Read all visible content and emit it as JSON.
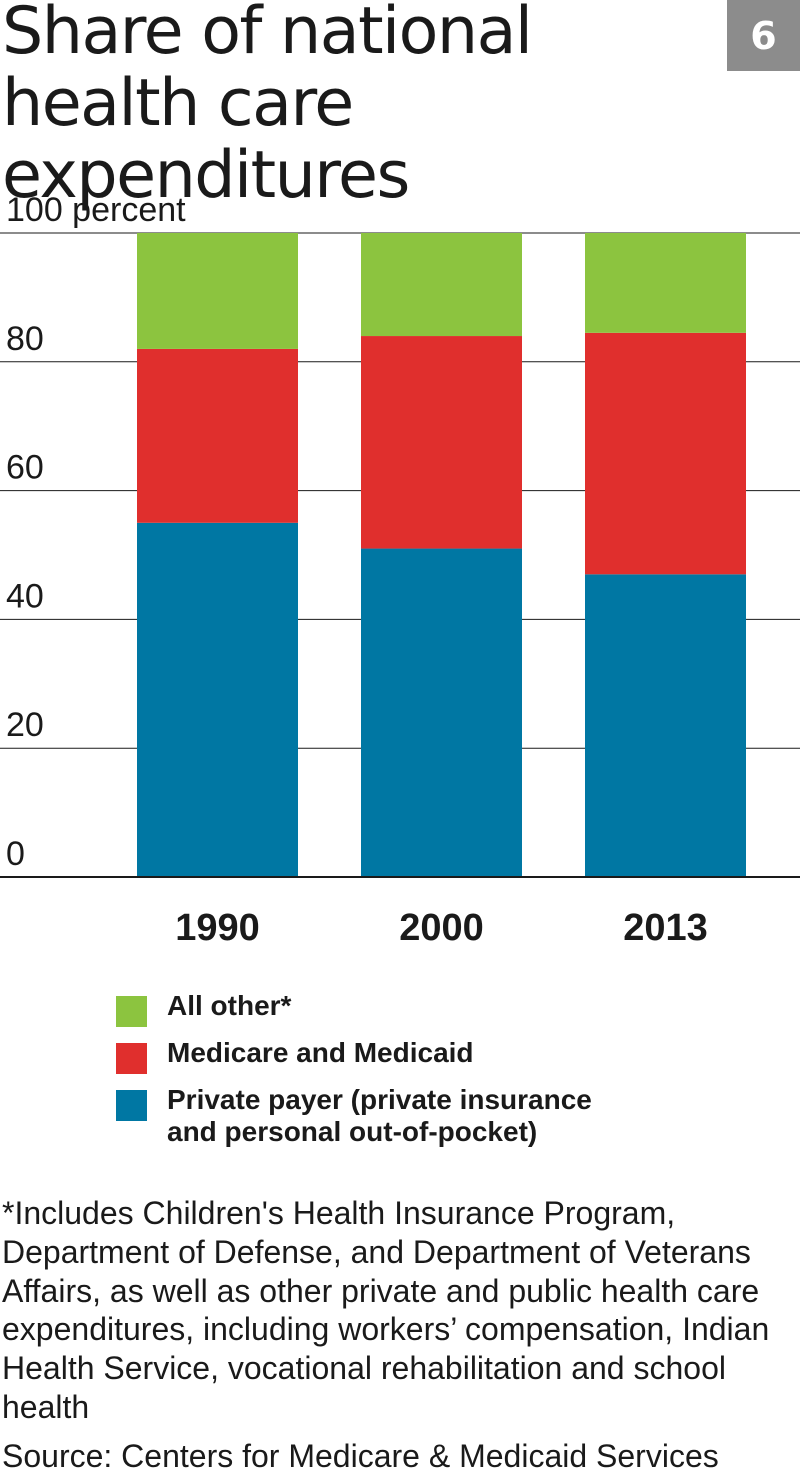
{
  "header": {
    "title": "Share of national health care expenditures",
    "badge": "6"
  },
  "chart_data": {
    "type": "bar",
    "stacked": true,
    "categories": [
      "1990",
      "2000",
      "2013"
    ],
    "series": [
      {
        "name": "Private payer (private insurance and personal out-of-pocket)",
        "color": "#0077a3",
        "values": [
          55,
          51,
          47
        ]
      },
      {
        "name": "Medicare and Medicaid",
        "color": "#e02f2d",
        "values": [
          27,
          33,
          37.5
        ]
      },
      {
        "name": "All other*",
        "color": "#8cc43f",
        "values": [
          18,
          16,
          15.5
        ]
      }
    ],
    "ylim": [
      0,
      100
    ],
    "yticks": [
      0,
      20,
      40,
      60,
      80,
      100
    ],
    "ytick_labels": [
      "0",
      "20",
      "40",
      "60",
      "80",
      "100 percent"
    ],
    "grid": true,
    "legend": "bottom"
  },
  "legend": {
    "items": [
      {
        "label": "All other*",
        "color": "#8cc43f"
      },
      {
        "label": "Medicare and Medicaid",
        "color": "#e02f2d"
      },
      {
        "label": "Private payer (private insurance and personal out-of-pocket)",
        "color": "#0077a3"
      }
    ]
  },
  "footnote": "*Includes Children's Health Insurance Program, Department of Defense, and Department of Veterans Affairs, as well as other private and public health care expenditures, including workers’ compensation, Indian Health Service, vocational rehabilitation and school health",
  "source": "Source: Centers for Medicare & Medicaid Services"
}
